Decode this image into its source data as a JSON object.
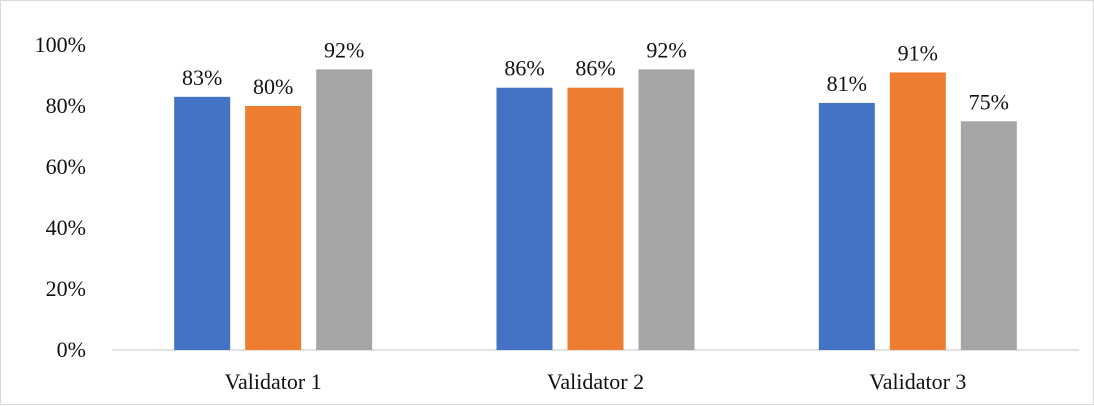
{
  "chart_data": {
    "type": "bar",
    "categories": [
      "Validator 1",
      "Validator 2",
      "Validator 3"
    ],
    "series": [
      {
        "color": "#4472C4",
        "values": [
          83,
          86,
          81
        ]
      },
      {
        "color": "#ED7D31",
        "values": [
          80,
          86,
          91
        ]
      },
      {
        "color": "#A5A5A5",
        "values": [
          92,
          92,
          75
        ]
      }
    ],
    "data_labels": [
      [
        "83%",
        "86%",
        "81%"
      ],
      [
        "80%",
        "86%",
        "91%"
      ],
      [
        "92%",
        "92%",
        "75%"
      ]
    ],
    "yticks": [
      0,
      20,
      40,
      60,
      80,
      100
    ],
    "ytick_labels": [
      "0%",
      "20%",
      "40%",
      "60%",
      "80%",
      "100%"
    ],
    "ylim": [
      0,
      100
    ],
    "title": "",
    "xlabel": "",
    "ylabel": "",
    "legend": "none",
    "grid": false
  }
}
